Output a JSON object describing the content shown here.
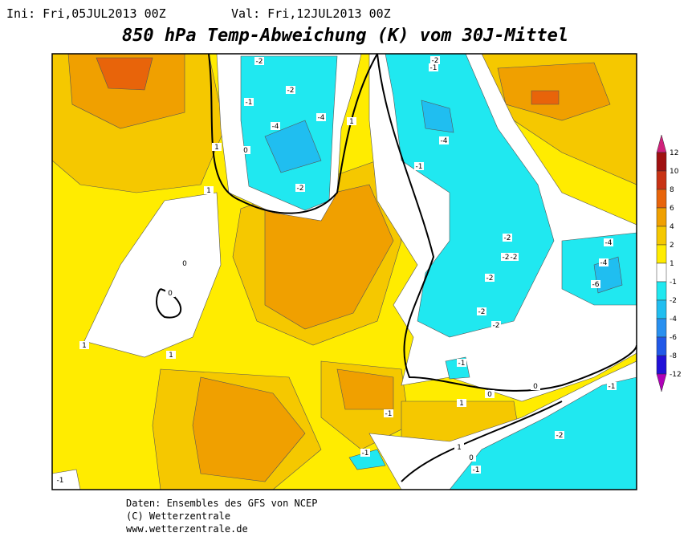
{
  "header": {
    "init": "Ini: Fri,05JUL2013 00Z",
    "valid": "Val: Fri,12JUL2013 00Z",
    "title": "850 hPa Temp-Abweichung (K) vom 30J-Mittel"
  },
  "legend": {
    "levels": [
      12,
      10,
      8,
      6,
      4,
      2,
      1,
      -1,
      -2,
      -4,
      -6,
      -8,
      -12
    ],
    "colors": [
      "#d0207a",
      "#a01010",
      "#c83214",
      "#e8640a",
      "#f0a000",
      "#f5c800",
      "#ffec00",
      "#ffffff",
      "#20e8f0",
      "#20bef0",
      "#2890f0",
      "#2058e8",
      "#2010d8",
      "#b000b8"
    ]
  },
  "contour_labels": [
    -2,
    -2,
    -1,
    -4,
    -4,
    1,
    1,
    0,
    -2,
    1,
    -1,
    -2,
    -4,
    -1,
    -2,
    -2,
    -2,
    -2,
    -4,
    -4,
    -6,
    0,
    0,
    1,
    1,
    -2,
    -2,
    -1,
    0,
    0,
    -1,
    -2,
    1,
    1,
    0,
    -1,
    -1,
    -1,
    -1
  ],
  "footer": {
    "lines": [
      "Daten: Ensembles des GFS von NCEP",
      "(C) Wetterzentrale",
      "www.wetterzentrale.de"
    ]
  }
}
